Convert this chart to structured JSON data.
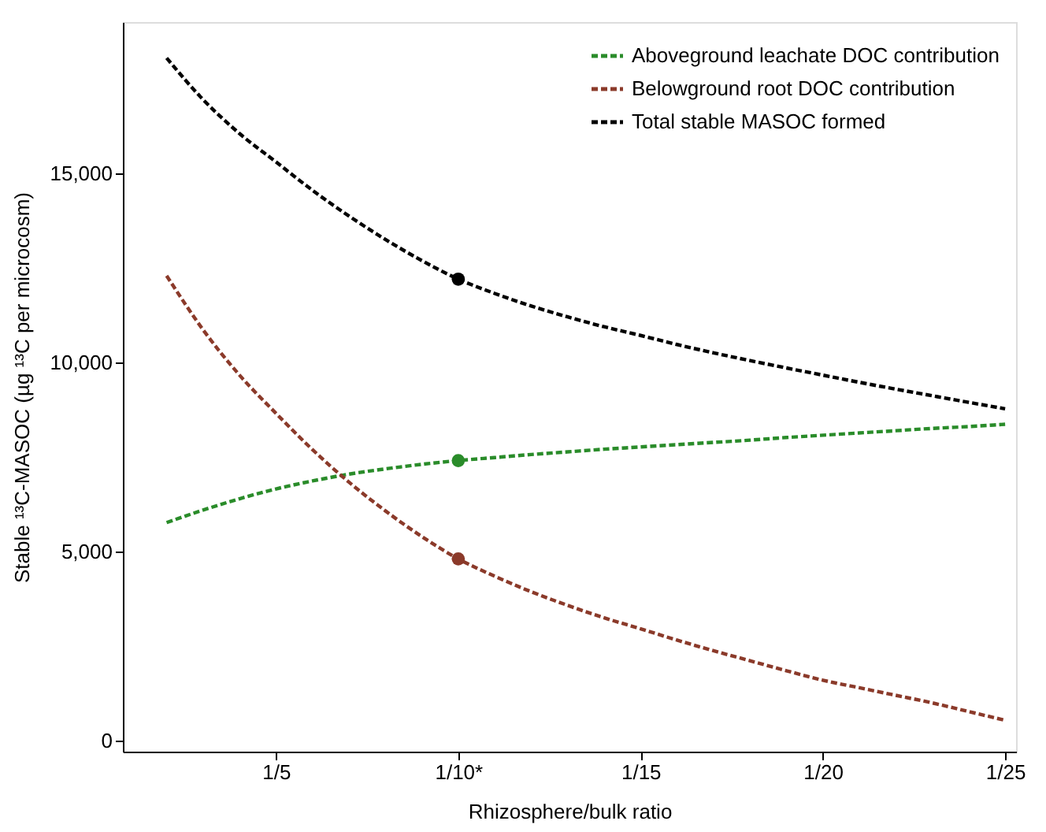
{
  "chart_data": {
    "type": "line",
    "xlabel": "Rhizosphere/bulk ratio",
    "ylabel": "Stable ¹³C-MASOC (µg ¹³C per microcosm)",
    "categories": [
      null,
      null,
      null,
      "1/5",
      null,
      null,
      null,
      null,
      "1/10*",
      null,
      null,
      null,
      null,
      "1/15",
      null,
      null,
      null,
      null,
      "1/20",
      null,
      null,
      null,
      null,
      "1/25"
    ],
    "series": [
      {
        "name": "Aboveground leachate DOC contribution",
        "color": "#2a8c2a",
        "values": [
          5760,
          6090,
          6390,
          6650,
          6860,
          7040,
          7180,
          7300,
          7400,
          7480,
          7560,
          7630,
          7700,
          7760,
          7820,
          7880,
          7940,
          8010,
          8070,
          8130,
          8190,
          8250,
          8300,
          8360
        ]
      },
      {
        "name": "Belowground root DOC contribution",
        "color": "#8b3a2a",
        "values": [
          12290,
          10860,
          9660,
          8650,
          7690,
          6830,
          6070,
          5390,
          4800,
          4340,
          3930,
          3570,
          3240,
          2950,
          2650,
          2370,
          2105,
          1840,
          1590,
          1390,
          1190,
          990,
          760,
          530
        ]
      },
      {
        "name": "Total stable MASOC formed",
        "color": "#000000",
        "values": [
          18050,
          16950,
          16050,
          15300,
          14550,
          13870,
          13250,
          12690,
          12200,
          11820,
          11490,
          11200,
          10940,
          10710,
          10470,
          10250,
          10045,
          9850,
          9660,
          9470,
          9290,
          9115,
          8940,
          8770
        ]
      },
      {
        "type": "scatter",
        "marker": "circle",
        "color": "#2a8c2a",
        "x": [
          "1/10*"
        ],
        "values": [
          7400
        ]
      },
      {
        "type": "scatter",
        "marker": "circle",
        "color": "#8b3a2a",
        "x": [
          "1/10*"
        ],
        "values": [
          4800
        ]
      },
      {
        "type": "scatter",
        "marker": "circle",
        "color": "#000000",
        "x": [
          "1/10*"
        ],
        "values": [
          12200
        ]
      }
    ],
    "line_style": "dashed",
    "ylim": [
      -300,
      19000
    ],
    "yticks": [
      {
        "value": 0,
        "label": "0"
      },
      {
        "value": 5000,
        "label": "5,000"
      },
      {
        "value": 10000,
        "label": "10,000"
      },
      {
        "value": 15000,
        "label": "15,000"
      }
    ],
    "grid": false,
    "legend": "top right"
  }
}
